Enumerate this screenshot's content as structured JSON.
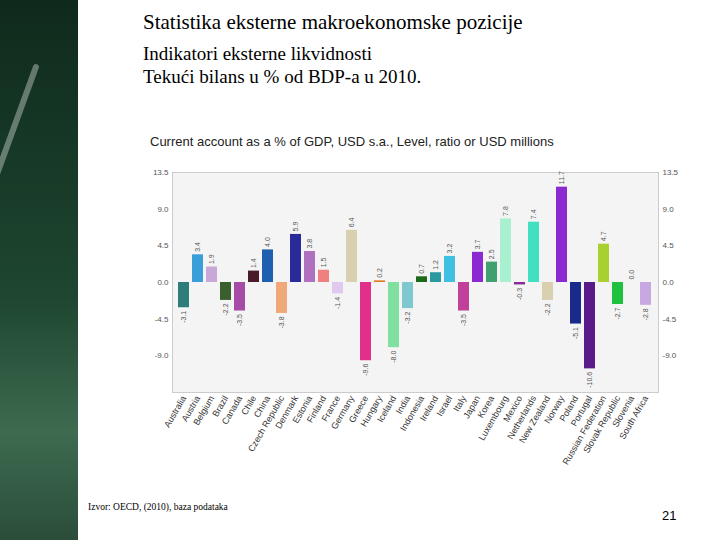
{
  "slide": {
    "title": "Statistika eksterne makroekonomske pozicije",
    "subtitle": [
      "Indikatori eksterne likvidnosti",
      "Tekući bilans u % od BDP-a u 2010."
    ],
    "source": "Izvor: OECD, (2010), baza podataka",
    "page": "21"
  },
  "chart_data": {
    "type": "bar",
    "title": "Current account as a % of GDP, USD s.a., Level, ratio or USD millions",
    "categories": [
      "Australia",
      "Austria",
      "Belgium",
      "Brazil",
      "Canada",
      "Chile",
      "China",
      "Czech Republic",
      "Denmark",
      "Estonia",
      "Finland",
      "France",
      "Germany",
      "Greece",
      "Hungary",
      "Iceland",
      "India",
      "Indonesia",
      "Ireland",
      "Israel",
      "Italy",
      "Japan",
      "Korea",
      "Luxembourg",
      "Mexico",
      "Netherlands",
      "New Zealand",
      "Norway",
      "Poland",
      "Portugal",
      "Russian Federation",
      "Slovak Republic",
      "Slovenia",
      "South Africa"
    ],
    "values": [
      -3.1,
      3.4,
      1.9,
      -2.2,
      -3.5,
      1.4,
      4.0,
      -3.8,
      5.9,
      3.8,
      1.5,
      -1.4,
      6.4,
      -9.6,
      0.2,
      -8.0,
      -3.2,
      0.7,
      1.2,
      3.2,
      -3.5,
      3.7,
      2.5,
      7.8,
      -0.3,
      7.4,
      -2.2,
      11.7,
      -5.1,
      -10.6,
      4.7,
      -2.7,
      0.0,
      -2.8
    ],
    "value_labels": [
      "-3.1",
      "3.4",
      "1.9",
      "-2.2",
      "-3.5",
      "1.4",
      "4.0",
      "-3.8",
      "5.9",
      "3.8",
      "1.5",
      "-1.4",
      "6.4",
      "-9.6",
      "0.2",
      "-8.0",
      "-3.2",
      "0.7",
      "1.2",
      "3.2",
      "-3.5",
      "3.7",
      "2.5",
      "7.8",
      "-0.3",
      "7.4",
      "-2.2",
      "11.7",
      "-5.1",
      "-10.6",
      "4.7",
      "-2.7",
      "0.0",
      "-2.8"
    ],
    "colors": [
      "#2e7d7a",
      "#3a9fd8",
      "#c7a8d8",
      "#3a5e2e",
      "#a64ca6",
      "#4a1a2a",
      "#1f5fb0",
      "#f0a878",
      "#2a2a9a",
      "#b070c0",
      "#f08080",
      "#e0c8f0",
      "#d8d0b0",
      "#e0308a",
      "#e07820",
      "#80e0a0",
      "#80c8d0",
      "#1a6a1a",
      "#2a9aa0",
      "#40c0e0",
      "#c0409a",
      "#8a2ad0",
      "#40a070",
      "#a8f0d0",
      "#8a2a9a",
      "#40e0c0",
      "#d8d0b0",
      "#8a2ad0",
      "#1a2a8a",
      "#5a1a8a",
      "#a8d030",
      "#20c040",
      "#2a4a6a",
      "#c8a8e0"
    ],
    "ylim": [
      -13.5,
      13.5
    ],
    "yticks": [
      {
        "value": -9,
        "label": "-9.0"
      },
      -4.5,
      {
        "value": 0,
        "label": "0.0"
      },
      4.5,
      {
        "value": 9,
        "label": "9.0"
      },
      13.5
    ],
    "data_labels": true,
    "grid": false
  }
}
